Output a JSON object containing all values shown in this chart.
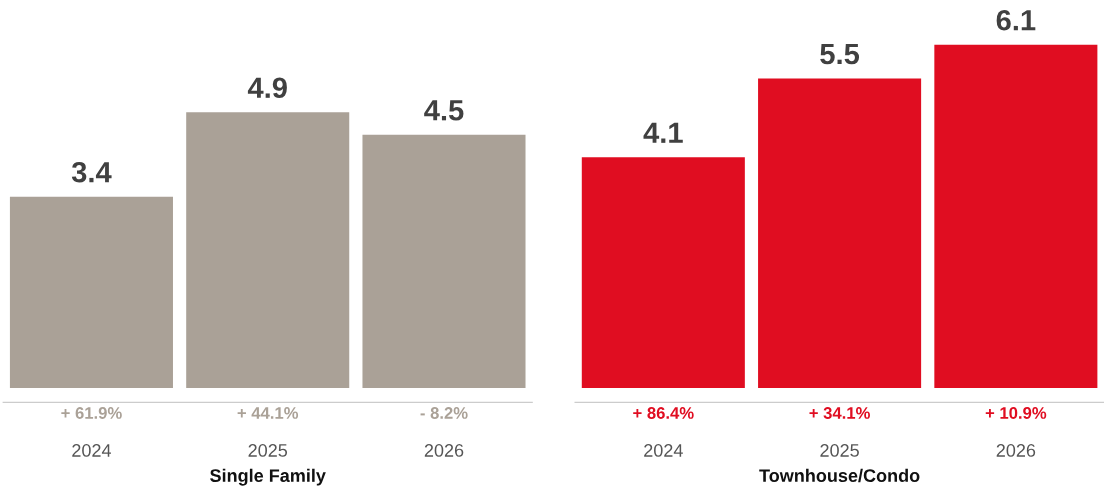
{
  "chart_data": [
    {
      "type": "bar",
      "xlabel": "Single Family",
      "categories": [
        "2024",
        "2025",
        "2026"
      ],
      "values": [
        3.4,
        4.9,
        4.5
      ],
      "color": "#aaa197",
      "data_labels": true,
      "grid": false,
      "legend": false,
      "annotations": [
        {
          "text": "+ 61.9%",
          "x": "2024",
          "y": 0
        },
        {
          "text": "+ 44.1%",
          "x": "2025",
          "y": 0
        },
        {
          "text": "- 8.2%",
          "x": "2026",
          "y": 0
        }
      ]
    },
    {
      "type": "bar",
      "xlabel": "Townhouse/Condo",
      "categories": [
        "2024",
        "2025",
        "2026"
      ],
      "values": [
        4.1,
        5.5,
        6.1
      ],
      "color": "#e00d21",
      "data_labels": true,
      "grid": false,
      "legend": false,
      "annotations": [
        {
          "text": "+ 86.4%",
          "x": "2024",
          "y": 0
        },
        {
          "text": "+ 34.1%",
          "x": "2025",
          "y": 0
        },
        {
          "text": "+ 10.9%",
          "x": "2026",
          "y": 0
        }
      ]
    }
  ]
}
